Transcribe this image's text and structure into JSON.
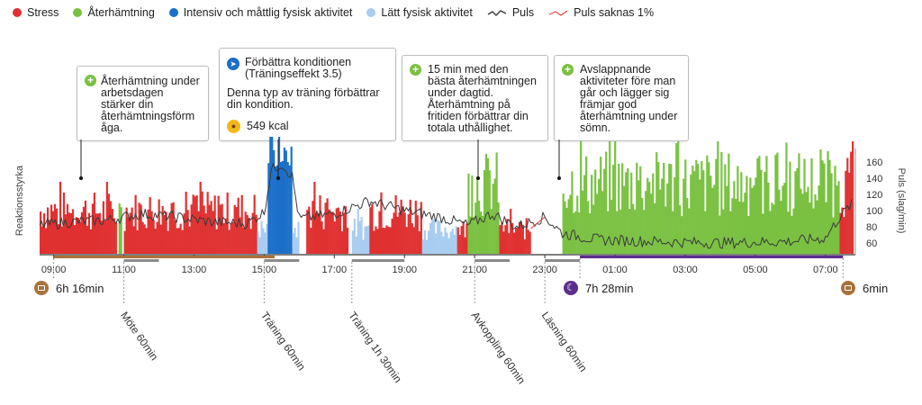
{
  "legend": {
    "stress": "Stress",
    "recovery": "Återhämtning",
    "intense": "Intensiv och måttlig fysisk aktivitet",
    "light": "Lätt fysisk aktivitet",
    "pulse": "Puls",
    "pulse_missing": "Puls saknas 1%"
  },
  "colors": {
    "stress": "#e03131",
    "recovery": "#7ac142",
    "intense": "#1b6fc9",
    "light": "#a9cdf0",
    "pulse": "#3a3a3a",
    "pulse_missing": "#e64545",
    "work": "#a8723a",
    "sleep": "#5b2d8e",
    "event": "#8a8a8a"
  },
  "callouts": {
    "work_recovery": "Återhämtning under\narbetsdagen\nstärker din\nåterhämtningsförm\någa.",
    "training_title": "Förbättra konditionen\n(Träningseffekt 3.5)",
    "training_body": "Denna typ av träning förbättrar\ndin kondition.",
    "training_kcal": "549 kcal",
    "daytime_recovery": "15 min med den\nbästa återhämtningen\nunder dagtid.\nÅterhämtning på\nfritiden förbättrar din\ntotala uthållighet.",
    "relaxing": "Avslappnande\naktiviteter före man\ngår och lägger sig\nfrämjar god\nåterhämtning under\nsömn."
  },
  "badges": {
    "work_morning": "6h 16min",
    "sleep": "7h 28min",
    "work_end": "6min"
  },
  "chart_data": {
    "type": "bar",
    "title": "",
    "xlabel": "",
    "ylabel_left": "Reaktionsstyrka",
    "ylabel_right": "Puls (slag/min)",
    "y_right_ticks": [
      60,
      80,
      100,
      120,
      140,
      160
    ],
    "x_ticks": [
      "09:00",
      "11:00",
      "13:00",
      "15:00",
      "17:00",
      "19:00",
      "21:00",
      "23:00",
      "01:00",
      "03:00",
      "05:00",
      "07:00"
    ],
    "x_range_hours": [
      8.6,
      31.8
    ],
    "pulse_missing_percent": 1,
    "segments": [
      {
        "category": "stress",
        "start": 8.6,
        "end": 10.8,
        "level": "medium"
      },
      {
        "category": "recovery",
        "start": 10.85,
        "end": 10.95,
        "level": "medium"
      },
      {
        "category": "stress",
        "start": 11.0,
        "end": 14.8,
        "level": "medium"
      },
      {
        "category": "light",
        "start": 14.8,
        "end": 15.1,
        "level": "low"
      },
      {
        "category": "intense",
        "start": 15.1,
        "end": 15.8,
        "level": "very high"
      },
      {
        "category": "light",
        "start": 15.8,
        "end": 16.0,
        "level": "low"
      },
      {
        "category": "stress",
        "start": 16.2,
        "end": 17.4,
        "level": "medium"
      },
      {
        "category": "light",
        "start": 17.5,
        "end": 18.0,
        "level": "low"
      },
      {
        "category": "stress",
        "start": 18.0,
        "end": 19.5,
        "level": "medium"
      },
      {
        "category": "light",
        "start": 19.5,
        "end": 20.5,
        "level": "low"
      },
      {
        "category": "stress",
        "start": 20.5,
        "end": 20.8,
        "level": "low"
      },
      {
        "category": "recovery",
        "start": 20.8,
        "end": 21.7,
        "level": "high"
      },
      {
        "category": "stress",
        "start": 21.7,
        "end": 22.6,
        "level": "low"
      },
      {
        "category": "recovery",
        "start": 23.5,
        "end": 24.0,
        "level": "high"
      },
      {
        "category": "recovery",
        "start": 24.0,
        "end": 31.4,
        "level": "high"
      },
      {
        "category": "stress",
        "start": 31.4,
        "end": 31.8,
        "level": "high"
      }
    ],
    "pulse": [
      {
        "x": 8.6,
        "y": 82
      },
      {
        "x": 9.5,
        "y": 86
      },
      {
        "x": 10.5,
        "y": 88
      },
      {
        "x": 11.5,
        "y": 96
      },
      {
        "x": 12.5,
        "y": 92
      },
      {
        "x": 13.5,
        "y": 86
      },
      {
        "x": 14.5,
        "y": 84
      },
      {
        "x": 15.0,
        "y": 98
      },
      {
        "x": 15.2,
        "y": 150
      },
      {
        "x": 15.5,
        "y": 158
      },
      {
        "x": 15.8,
        "y": 142
      },
      {
        "x": 16.0,
        "y": 90
      },
      {
        "x": 17.0,
        "y": 96
      },
      {
        "x": 18.0,
        "y": 112
      },
      {
        "x": 19.0,
        "y": 100
      },
      {
        "x": 20.0,
        "y": 92
      },
      {
        "x": 20.8,
        "y": 82
      },
      {
        "x": 21.5,
        "y": 96
      },
      {
        "x": 22.2,
        "y": 80
      },
      {
        "x": 23.0,
        "y": 92
      },
      {
        "x": 23.5,
        "y": 72
      },
      {
        "x": 24.5,
        "y": 64
      },
      {
        "x": 26.0,
        "y": 62
      },
      {
        "x": 28.0,
        "y": 60
      },
      {
        "x": 30.0,
        "y": 62
      },
      {
        "x": 31.0,
        "y": 66
      },
      {
        "x": 31.4,
        "y": 92
      },
      {
        "x": 31.8,
        "y": 110
      }
    ],
    "pulse_missing_span": [
      22.6,
      23.0
    ],
    "events": [
      {
        "label": "Möte 60min",
        "start": 11.0,
        "end": 12.0
      },
      {
        "label": "Träning 60min",
        "start": 15.0,
        "end": 16.0
      },
      {
        "label": "Träning 1h 30min",
        "start": 17.5,
        "end": 19.0
      },
      {
        "label": "Avkoppling 60min",
        "start": 21.0,
        "end": 22.0
      },
      {
        "label": "Läsning 60min",
        "start": 23.0,
        "end": 24.0
      }
    ],
    "periods": [
      {
        "kind": "work",
        "start": 9.0,
        "end": 15.3
      },
      {
        "kind": "sleep",
        "start": 24.0,
        "end": 31.5
      }
    ]
  }
}
